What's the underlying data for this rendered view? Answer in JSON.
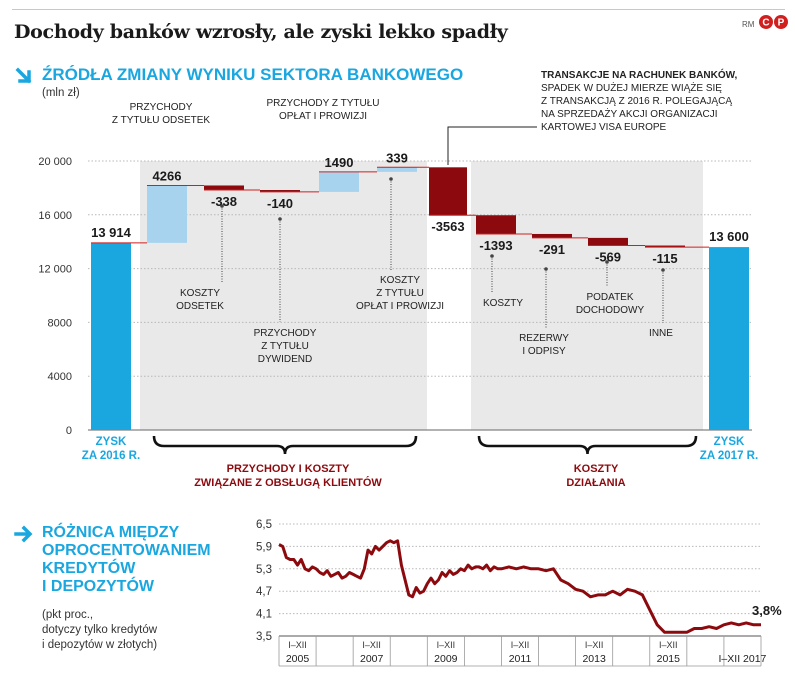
{
  "headline": "Dochody banków wzrosły, ale zyski lekko spadły",
  "credit": "RM",
  "logo_text": "CP",
  "section1": {
    "title": "ŹRÓDŁA ZMIANY WYNIKU SEKTORA BANKOWEGO",
    "unit": "(mln zł)"
  },
  "note": {
    "bold": "TRANSAKCJE NA RACHUNEK BANKÓW,",
    "lines": [
      "SPADEK W DUŻEJ MIERZE WIĄŻE SIĘ",
      "Z TRANSAKCJĄ Z 2016 R. POLEGAJĄCĄ",
      "NA SPRZEDAŻY AKCJI ORGANIZACJI",
      "KARTOWEJ VISA EUROPE"
    ]
  },
  "groups": {
    "clients": [
      "PRZYCHODY I KOSZTY",
      "ZWIĄZANE Z OBSŁUGĄ KLIENTÓW"
    ],
    "costs": [
      "KOSZTY",
      "DZIAŁANIA"
    ]
  },
  "section2": {
    "title_lines": [
      "RÓŻNICA MIĘDZY",
      "OPROCENTOWANIEM",
      "KREDYTÓW",
      "I DEPOZYTÓW"
    ],
    "unit_lines": [
      "(pkt proc.,",
      "dotyczy tylko kredytów",
      "i depozytów w złotych)"
    ]
  },
  "colors": {
    "accent": "#1aa7e0",
    "bar_total": "#1aa7e0",
    "bar_increase": "#a7d3ef",
    "bar_decrease": "#8c0a0e",
    "connector": "#d11f1f",
    "band": "#e9e9e9",
    "line": "#8c0a0e"
  },
  "chart_data": [
    {
      "type": "bar",
      "subtype": "waterfall",
      "title": "ŹRÓDŁA ZMIANY WYNIKU SEKTORA BANKOWEGO",
      "ylabel": "(mln zł)",
      "ylim": [
        0,
        20000
      ],
      "yticks": [
        0,
        4000,
        8000,
        12000,
        16000,
        20000
      ],
      "ytick_labels": [
        "0",
        "4000",
        "8000",
        "12 000",
        "16 000",
        "20 000"
      ],
      "grid": true,
      "items": [
        {
          "kind": "total",
          "value": 13914,
          "value_label": "13 914",
          "label_lines": [
            "ZYSK",
            "ZA 2016 R."
          ]
        },
        {
          "kind": "delta",
          "value": 4266,
          "value_label": "4266",
          "label_lines": [
            "PRZYCHODY",
            "Z TYTUŁU ODSETEK"
          ]
        },
        {
          "kind": "delta",
          "value": -338,
          "value_label": "-338",
          "label_lines": [
            "KOSZTY",
            "ODSETEK"
          ]
        },
        {
          "kind": "delta",
          "value": -140,
          "value_label": "-140",
          "label_lines": [
            "PRZYCHODY",
            "Z TYTUŁU",
            "DYWIDEND"
          ]
        },
        {
          "kind": "delta",
          "value": 1490,
          "value_label": "1490",
          "label_lines": [
            "PRZYCHODY Z TYTUŁU",
            "OPŁAT I PROWIZJI"
          ]
        },
        {
          "kind": "delta",
          "value": 339,
          "value_label": "339",
          "label_lines": [
            "KOSZTY",
            "Z TYTUŁU",
            "OPŁAT I PROWIZJI"
          ]
        },
        {
          "kind": "delta",
          "value": -3563,
          "value_label": "-3563",
          "label_lines": []
        },
        {
          "kind": "delta",
          "value": -1393,
          "value_label": "-1393",
          "label_lines": [
            "KOSZTY"
          ]
        },
        {
          "kind": "delta",
          "value": -291,
          "value_label": "-291",
          "label_lines": [
            "REZERWY",
            "I ODPISY"
          ]
        },
        {
          "kind": "delta",
          "value": -569,
          "value_label": "-569",
          "label_lines": [
            "PODATEK",
            "DOCHODOWY"
          ]
        },
        {
          "kind": "delta",
          "value": -115,
          "value_label": "-115",
          "label_lines": [
            "INNE"
          ]
        },
        {
          "kind": "total",
          "value": 13600,
          "value_label": "13 600",
          "label_lines": [
            "ZYSK",
            "ZA 2017 R."
          ]
        }
      ]
    },
    {
      "type": "line",
      "title": "RÓŻNICA MIĘDZY OPROCENTOWANIEM KREDYTÓW I DEPOZYTÓW",
      "ylabel": "(pkt proc., dotyczy tylko kredytów i depozytów w złotych)",
      "ylim": [
        3.5,
        6.5
      ],
      "yticks": [
        3.5,
        4.1,
        4.7,
        5.3,
        5.9,
        6.5
      ],
      "ytick_labels": [
        "3,5",
        "4,1",
        "4,7",
        "5,3",
        "5,9",
        "6,5"
      ],
      "x_start": 2005,
      "x_end": 2018,
      "x_year_labels": [
        "2005",
        "2007",
        "2009",
        "2011",
        "2013",
        "2015"
      ],
      "x_last_label": "I–XII 2017",
      "period_label": "I–XII",
      "end_label": "3,8%",
      "series": [
        {
          "name": "różnica oprocentowania",
          "x": [
            2005.0,
            2005.1,
            2005.2,
            2005.3,
            2005.4,
            2005.5,
            2005.6,
            2005.7,
            2005.8,
            2005.9,
            2006.0,
            2006.1,
            2006.2,
            2006.3,
            2006.4,
            2006.5,
            2006.6,
            2006.7,
            2006.8,
            2006.9,
            2007.0,
            2007.1,
            2007.2,
            2007.3,
            2007.4,
            2007.5,
            2007.6,
            2007.7,
            2007.8,
            2007.9,
            2008.0,
            2008.1,
            2008.2,
            2008.3,
            2008.4,
            2008.5,
            2008.6,
            2008.7,
            2008.8,
            2008.9,
            2009.0,
            2009.1,
            2009.2,
            2009.3,
            2009.4,
            2009.5,
            2009.6,
            2009.7,
            2009.8,
            2009.9,
            2010.0,
            2010.1,
            2010.2,
            2010.3,
            2010.4,
            2010.5,
            2010.6,
            2010.7,
            2010.8,
            2010.9,
            2011.0,
            2011.2,
            2011.4,
            2011.6,
            2011.8,
            2012.0,
            2012.2,
            2012.4,
            2012.6,
            2012.8,
            2013.0,
            2013.2,
            2013.4,
            2013.6,
            2013.8,
            2014.0,
            2014.2,
            2014.4,
            2014.6,
            2014.8,
            2015.0,
            2015.2,
            2015.4,
            2015.6,
            2015.8,
            2016.0,
            2016.2,
            2016.4,
            2016.6,
            2016.8,
            2017.0,
            2017.2,
            2017.4,
            2017.6,
            2017.8,
            2018.0
          ],
          "y": [
            5.95,
            5.9,
            5.6,
            5.55,
            5.55,
            5.4,
            5.55,
            5.3,
            5.25,
            5.35,
            5.3,
            5.2,
            5.15,
            5.25,
            5.1,
            5.15,
            5.2,
            5.05,
            5.1,
            5.2,
            5.15,
            5.1,
            5.05,
            5.3,
            5.8,
            5.7,
            5.9,
            5.8,
            5.9,
            6.0,
            6.05,
            6.0,
            6.05,
            5.4,
            5.0,
            4.6,
            4.55,
            4.8,
            4.65,
            4.7,
            4.9,
            5.05,
            4.9,
            5.0,
            5.2,
            5.1,
            5.25,
            5.15,
            5.2,
            5.3,
            5.25,
            5.4,
            5.3,
            5.35,
            5.35,
            5.3,
            5.4,
            5.25,
            5.35,
            5.3,
            5.3,
            5.35,
            5.3,
            5.35,
            5.3,
            5.3,
            5.25,
            5.3,
            5.0,
            4.9,
            4.75,
            4.7,
            4.55,
            4.6,
            4.6,
            4.7,
            4.6,
            4.75,
            4.7,
            4.6,
            4.2,
            3.8,
            3.6,
            3.6,
            3.6,
            3.6,
            3.7,
            3.7,
            3.75,
            3.7,
            3.8,
            3.85,
            3.8,
            3.85,
            3.8,
            3.8
          ]
        }
      ]
    }
  ]
}
